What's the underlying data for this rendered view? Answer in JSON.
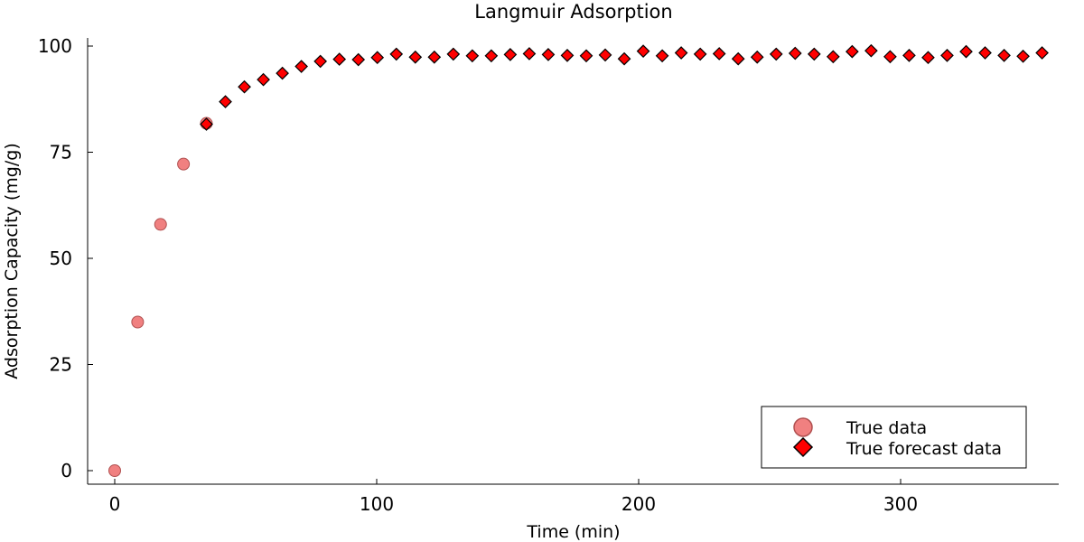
{
  "chart_data": {
    "type": "scatter",
    "title": "Langmuir Adsorption",
    "xlabel": "Time (min)",
    "ylabel": "Adsorption Capacity (mg/g)",
    "xlim": [
      -10,
      360
    ],
    "ylim": [
      -3,
      102
    ],
    "xticks": [
      0,
      100,
      200,
      300
    ],
    "yticks": [
      0,
      25,
      50,
      75,
      100
    ],
    "grid": false,
    "legend_position": "bottom-right",
    "colors": {
      "true_data_fill": "#f08080",
      "true_data_edge": "#b05050",
      "forecast_fill": "#ff0000",
      "forecast_edge": "#000000"
    },
    "series": [
      {
        "name": "True data",
        "marker": "circle",
        "x": [
          0,
          8.75,
          17.5,
          26.25,
          35
        ],
        "y": [
          0,
          35,
          58,
          72.2,
          81.8
        ]
      },
      {
        "name": "True forecast data",
        "marker": "diamond",
        "x": [
          35,
          42.25,
          49.5,
          56.75,
          64,
          71.25,
          78.5,
          85.75,
          93,
          100.25,
          107.5,
          114.75,
          122,
          129.25,
          136.5,
          143.75,
          151,
          158.25,
          165.5,
          172.75,
          180,
          187.25,
          194.5,
          201.75,
          209,
          216.25,
          223.5,
          230.75,
          238,
          245.25,
          252.5,
          259.75,
          267,
          274.25,
          281.5,
          288.75,
          296,
          303.25,
          310.5,
          317.75,
          325,
          332.25,
          339.5,
          346.75,
          354
        ],
        "y": [
          81.6,
          86.9,
          90.4,
          92.1,
          93.6,
          95.2,
          96.4,
          96.9,
          96.8,
          97.3,
          98.1,
          97.4,
          97.4,
          98.1,
          97.7,
          97.7,
          98,
          98.2,
          98,
          97.8,
          97.7,
          97.9,
          97,
          98.8,
          97.7,
          98.4,
          98.1,
          98.2,
          97,
          97.4,
          98.1,
          98.3,
          98.1,
          97.5,
          98.7,
          98.9,
          97.5,
          97.8,
          97.3,
          97.8,
          98.7,
          98.4,
          97.8,
          97.6,
          98.4
        ]
      }
    ]
  }
}
